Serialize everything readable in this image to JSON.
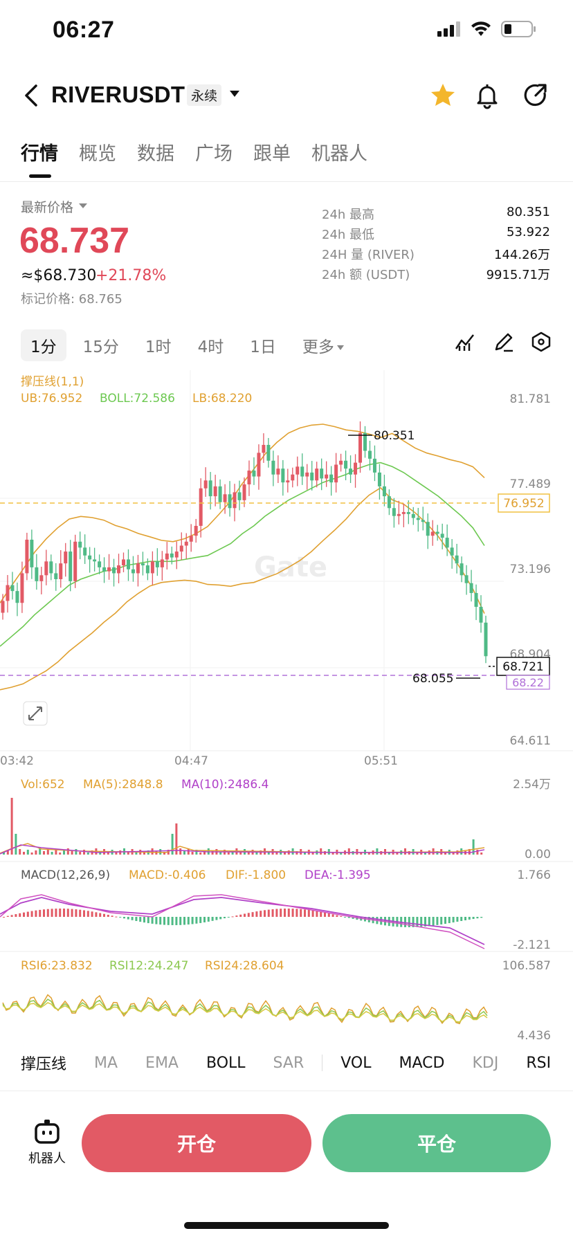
{
  "status_bar": {
    "time": "06:27"
  },
  "header": {
    "symbol": "RIVERUSDT",
    "contract_type": "永续",
    "icons": [
      "back-icon",
      "star-icon",
      "bell-icon",
      "share-icon"
    ],
    "star_color": "#f3b62c"
  },
  "tabs": [
    {
      "label": "行情",
      "active": true
    },
    {
      "label": "概览"
    },
    {
      "label": "数据"
    },
    {
      "label": "广场"
    },
    {
      "label": "跟单"
    },
    {
      "label": "机器人"
    }
  ],
  "price": {
    "label": "最新价格",
    "last": "68.737",
    "usd": "≈$68.730",
    "change": "+21.78%",
    "mark": "标记价格: 68.765",
    "up_color": "#e04858"
  },
  "stats": [
    {
      "label": "24h  最高",
      "value": "80.351"
    },
    {
      "label": "24h  最低",
      "value": "53.922"
    },
    {
      "label": "24H  量 (RIVER)",
      "value": "144.26万"
    },
    {
      "label": "24h  额 (USDT)",
      "value": "9915.71万"
    }
  ],
  "intervals": {
    "items": [
      "1分",
      "15分",
      "1时",
      "4时",
      "1日"
    ],
    "active": "1分",
    "more": "更多"
  },
  "chart_data": [
    {
      "type": "line",
      "title": "撑压线(1,1)",
      "legend": [
        {
          "name": "UB:76.952",
          "color": "#e0a030"
        },
        {
          "name": "BOLL:72.586",
          "color": "#6cc850"
        },
        {
          "name": "LB:68.220",
          "color": "#e0a030"
        }
      ],
      "y_ticks": [
        "81.781",
        "77.489",
        "73.196",
        "68.904",
        "64.611"
      ],
      "ylim": [
        64.611,
        81.781
      ],
      "x_ticks": [
        "03:42",
        "04:47",
        "05:51"
      ],
      "annotations": {
        "high": "80.351",
        "low": "68.055",
        "current": "68.721",
        "ub_tag": "76.952",
        "lb_tag": "68.22"
      },
      "candle_close": [
        71.5,
        72.3,
        72.0,
        71.4,
        72.9,
        74.6,
        73.2,
        72.5,
        72.8,
        73.5,
        72.9,
        72.6,
        73.4,
        74.0,
        72.5,
        74.5,
        74.2,
        73.8,
        73.6,
        73.5,
        73.2,
        73.0,
        73.2,
        72.9,
        73.3,
        73.6,
        73.1,
        72.9,
        73.4,
        73.3,
        72.9,
        73.5,
        73.2,
        73.6,
        73.9,
        73.7,
        74.0,
        74.3,
        74.5,
        74.8,
        75.3,
        77.2,
        77.6,
        76.8,
        77.3,
        76.5,
        76.9,
        76.2,
        77.0,
        76.6,
        77.4,
        78.1,
        77.8,
        79.0,
        79.4,
        78.6,
        77.9,
        78.2,
        77.5,
        77.6,
        77.9,
        78.3,
        77.8,
        78.0,
        77.6,
        78.2,
        77.7,
        77.9,
        77.5,
        78.4,
        78.6,
        78.2,
        77.9,
        78.5,
        80.0,
        79.1,
        78.7,
        78.0,
        77.3,
        76.8,
        76.2,
        75.8,
        75.9,
        76.0,
        75.9,
        75.7,
        75.6,
        75.5,
        74.8,
        75.0,
        74.9,
        74.7,
        74.2,
        73.8,
        73.4,
        72.8,
        72.4,
        71.9,
        71.2,
        70.4,
        68.7
      ],
      "boll_mid": [
        69.2,
        69.7,
        70.2,
        70.8,
        71.3,
        71.8,
        72.3,
        72.6,
        72.8,
        73.0,
        73.1,
        73.3,
        73.4,
        73.5,
        73.5,
        73.5,
        73.6,
        73.7,
        73.8,
        74.1,
        74.4,
        74.9,
        75.3,
        75.8,
        76.2,
        76.6,
        76.9,
        77.2,
        77.5,
        77.7,
        77.9,
        78.2,
        78.4,
        78.5,
        78.3,
        78.0,
        77.6,
        77.2,
        76.8,
        76.3,
        75.8,
        75.2,
        74.3
      ],
      "series_names": [
        "UB",
        "BOLL",
        "LB"
      ],
      "series_colors": {
        "UB": "#e0a030",
        "BOLL": "#6cc850",
        "LB": "#e0a030"
      }
    },
    {
      "type": "bar",
      "title": "VOL",
      "legend": [
        {
          "name": "Vol:652",
          "color": "#e0a030"
        },
        {
          "name": "MA(5):2848.8",
          "color": "#e0a030"
        },
        {
          "name": "MA(10):2486.4",
          "color": "#b040c8"
        }
      ],
      "y_ticks": [
        "2.54万",
        "0.00"
      ],
      "ylim": [
        0,
        25400
      ]
    },
    {
      "type": "bar",
      "title": "MACD(12,26,9)",
      "legend": [
        {
          "name": "MACD(12,26,9)",
          "color": "#555555"
        },
        {
          "name": "MACD:-0.406",
          "color": "#e0a030"
        },
        {
          "name": "DIF:-1.800",
          "color": "#e0a030"
        },
        {
          "name": "DEA:-1.395",
          "color": "#b040c8"
        }
      ],
      "y_ticks": [
        "1.766",
        "-2.121"
      ],
      "ylim": [
        -2.121,
        1.766
      ]
    },
    {
      "type": "line",
      "title": "RSI",
      "legend": [
        {
          "name": "RSI6:23.832",
          "color": "#e0a030"
        },
        {
          "name": "RSI12:24.247",
          "color": "#8cc850"
        },
        {
          "name": "RSI24:28.604",
          "color": "#e0a030"
        }
      ],
      "y_ticks": [
        "106.587",
        "4.436"
      ],
      "ylim": [
        4.436,
        106.587
      ]
    }
  ],
  "indicator_tabs": [
    "撑压线",
    "MA",
    "EMA",
    "BOLL",
    "SAR",
    "VOL",
    "MACD",
    "KDJ",
    "RSI"
  ],
  "indicator_active": [
    "撑压线",
    "BOLL",
    "VOL",
    "MACD",
    "RSI"
  ],
  "actions": {
    "robot": "机器人",
    "open": "开仓",
    "close": "平仓",
    "open_color": "#e25a65",
    "close_color": "#5dc08d"
  }
}
